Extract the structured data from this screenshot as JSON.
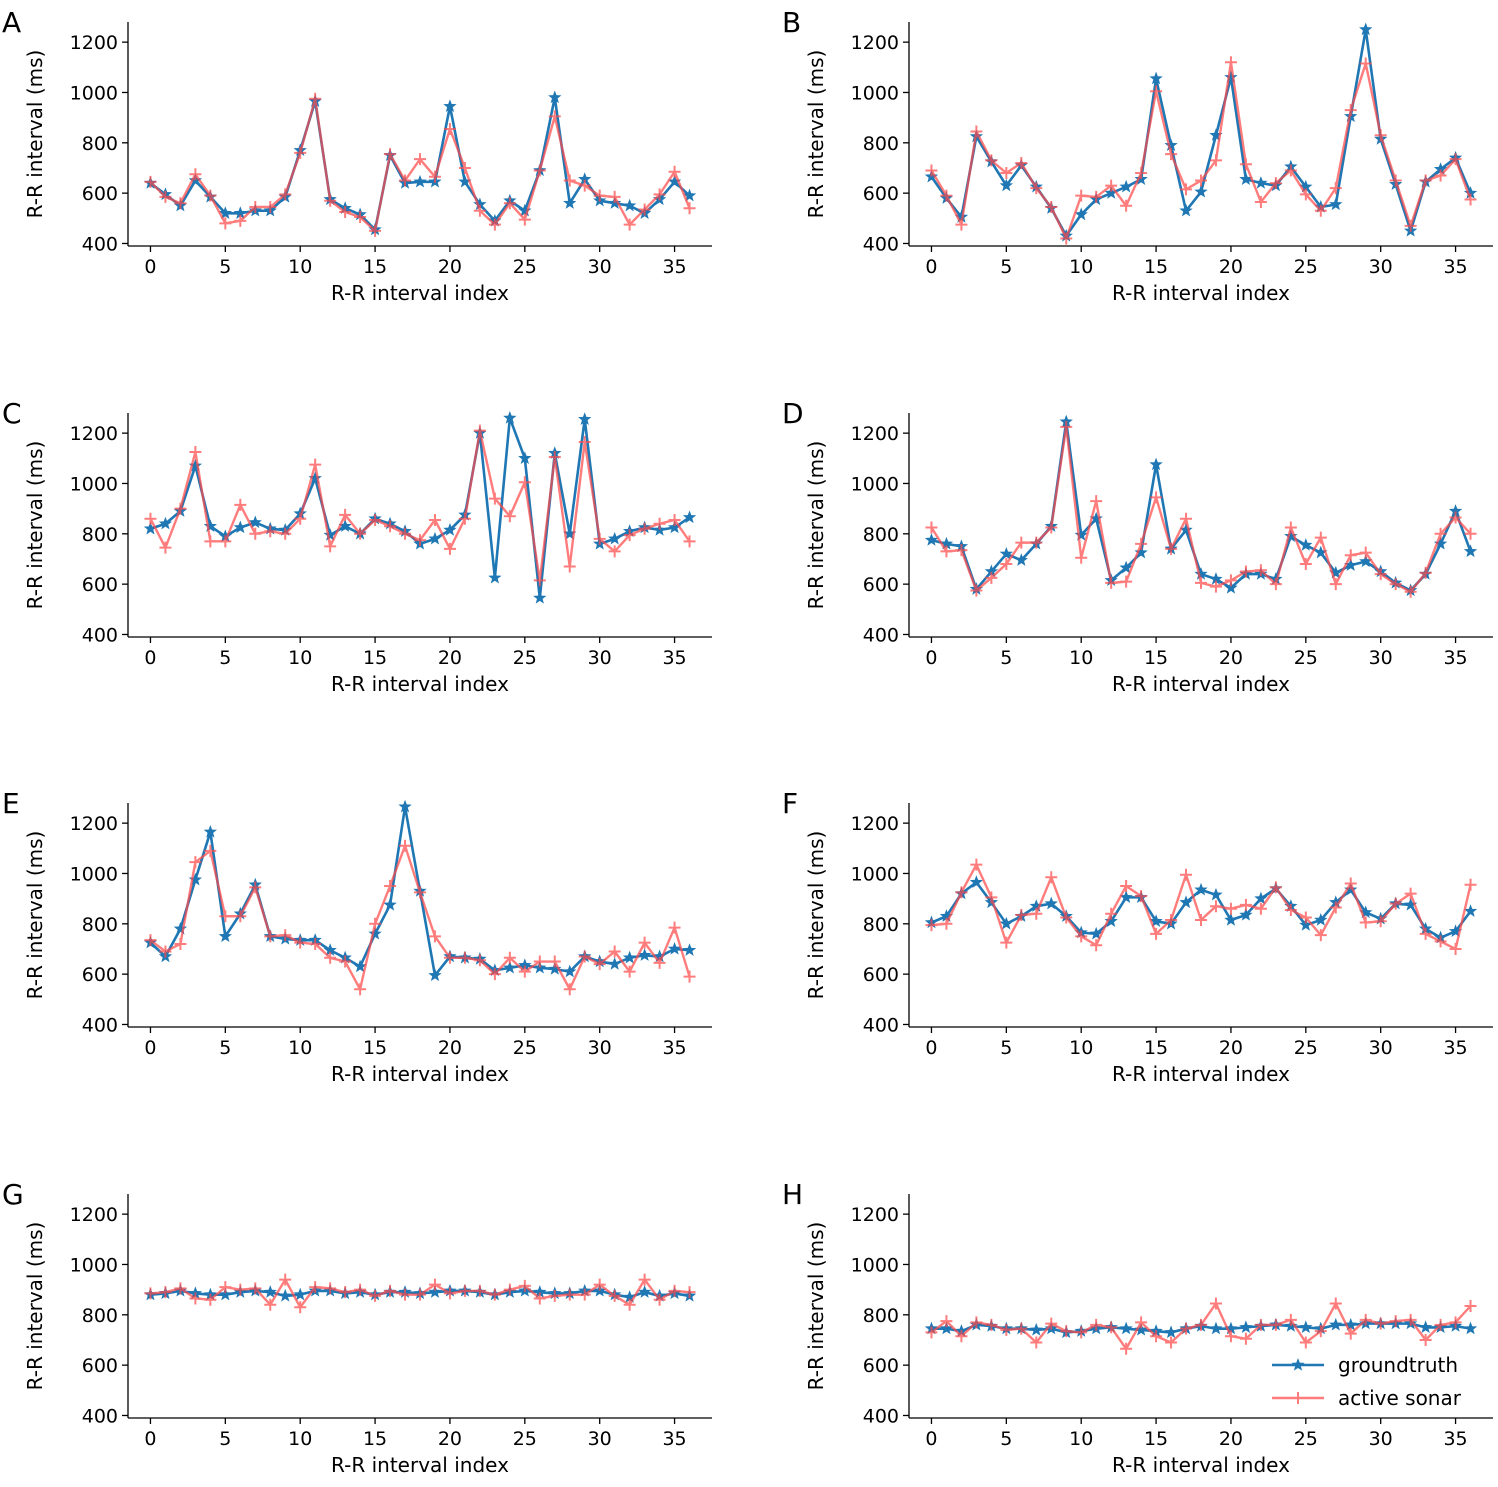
{
  "colors": {
    "groundtruth": "#1f77b4",
    "active_sonar": "#ff4a4a"
  },
  "legend": {
    "groundtruth": "groundtruth",
    "active_sonar": "active sonar",
    "location": "lower-right of panel H"
  },
  "chart_data": [
    {
      "type": "line",
      "panel": "A",
      "xlabel": "R-R interval index",
      "ylabel": "R-R interval (ms)",
      "xlim": [
        -1.5,
        37.5
      ],
      "ylim": [
        390,
        1280
      ],
      "xticks": [
        0,
        5,
        10,
        15,
        20,
        25,
        30,
        35
      ],
      "yticks": [
        400,
        600,
        800,
        1000,
        1200
      ],
      "xtick_labels": [
        "0",
        "5",
        "10",
        "15",
        "20",
        "25",
        "30",
        "35"
      ],
      "ytick_labels": [
        "400",
        "600",
        "800",
        "1000",
        "1200"
      ],
      "series": [
        {
          "name": "groundtruth",
          "values": [
            640,
            595,
            550,
            650,
            585,
            520,
            520,
            530,
            530,
            585,
            770,
            965,
            575,
            540,
            515,
            455,
            750,
            640,
            645,
            645,
            945,
            645,
            555,
            490,
            570,
            530,
            690,
            980,
            560,
            655,
            570,
            560,
            550,
            520,
            575,
            645,
            590
          ]
        },
        {
          "name": "active sonar",
          "values": [
            645,
            585,
            560,
            675,
            590,
            480,
            490,
            545,
            545,
            595,
            760,
            975,
            570,
            525,
            505,
            450,
            755,
            650,
            735,
            665,
            855,
            700,
            530,
            475,
            560,
            495,
            690,
            905,
            650,
            630,
            590,
            585,
            475,
            535,
            595,
            685,
            540
          ]
        }
      ]
    },
    {
      "type": "line",
      "panel": "B",
      "xlabel": "R-R interval index",
      "ylabel": "R-R interval (ms)",
      "xlim": [
        -1.5,
        37.5
      ],
      "ylim": [
        390,
        1280
      ],
      "xticks": [
        0,
        5,
        10,
        15,
        20,
        25,
        30,
        35
      ],
      "yticks": [
        400,
        600,
        800,
        1000,
        1200
      ],
      "xtick_labels": [
        "0",
        "5",
        "10",
        "15",
        "20",
        "25",
        "30",
        "35"
      ],
      "ytick_labels": [
        "400",
        "600",
        "800",
        "1000",
        "1200"
      ],
      "series": [
        {
          "name": "groundtruth",
          "values": [
            665,
            580,
            505,
            825,
            725,
            630,
            710,
            625,
            540,
            430,
            515,
            575,
            600,
            625,
            655,
            1055,
            790,
            530,
            605,
            830,
            1060,
            655,
            640,
            630,
            705,
            625,
            545,
            555,
            905,
            1250,
            815,
            635,
            450,
            645,
            695,
            740,
            600
          ]
        },
        {
          "name": "active sonar",
          "values": [
            690,
            590,
            475,
            845,
            730,
            680,
            720,
            620,
            545,
            420,
            590,
            585,
            630,
            550,
            680,
            1005,
            755,
            615,
            650,
            730,
            1120,
            715,
            565,
            640,
            690,
            595,
            530,
            620,
            930,
            1115,
            830,
            650,
            470,
            650,
            670,
            735,
            575
          ]
        }
      ]
    },
    {
      "type": "line",
      "panel": "C",
      "xlabel": "R-R interval index",
      "ylabel": "R-R interval (ms)",
      "xlim": [
        -1.5,
        37.5
      ],
      "ylim": [
        390,
        1280
      ],
      "xticks": [
        0,
        5,
        10,
        15,
        20,
        25,
        30,
        35
      ],
      "yticks": [
        400,
        600,
        800,
        1000,
        1200
      ],
      "xtick_labels": [
        "0",
        "5",
        "10",
        "15",
        "20",
        "25",
        "30",
        "35"
      ],
      "ytick_labels": [
        "400",
        "600",
        "800",
        "1000",
        "1200"
      ],
      "series": [
        {
          "name": "groundtruth",
          "values": [
            820,
            840,
            890,
            1070,
            830,
            790,
            825,
            845,
            820,
            815,
            880,
            1020,
            795,
            830,
            800,
            860,
            840,
            810,
            760,
            780,
            815,
            875,
            1200,
            625,
            1260,
            1100,
            545,
            1120,
            800,
            1255,
            760,
            780,
            810,
            825,
            815,
            825,
            865
          ]
        },
        {
          "name": "active sonar",
          "values": [
            860,
            745,
            900,
            1125,
            770,
            770,
            915,
            800,
            810,
            800,
            860,
            1075,
            750,
            875,
            800,
            855,
            830,
            800,
            775,
            855,
            740,
            860,
            1210,
            940,
            870,
            1005,
            615,
            1105,
            670,
            1165,
            780,
            730,
            795,
            820,
            840,
            855,
            770
          ]
        }
      ]
    },
    {
      "type": "line",
      "panel": "D",
      "xlabel": "R-R interval index",
      "ylabel": "R-R interval (ms)",
      "xlim": [
        -1.5,
        37.5
      ],
      "ylim": [
        390,
        1280
      ],
      "xticks": [
        0,
        5,
        10,
        15,
        20,
        25,
        30,
        35
      ],
      "yticks": [
        400,
        600,
        800,
        1000,
        1200
      ],
      "xtick_labels": [
        "0",
        "5",
        "10",
        "15",
        "20",
        "25",
        "30",
        "35"
      ],
      "ytick_labels": [
        "400",
        "600",
        "800",
        "1000",
        "1200"
      ],
      "series": [
        {
          "name": "groundtruth",
          "values": [
            775,
            760,
            750,
            580,
            650,
            720,
            695,
            760,
            830,
            1245,
            795,
            860,
            615,
            665,
            725,
            1075,
            740,
            815,
            640,
            620,
            585,
            640,
            640,
            620,
            790,
            755,
            725,
            645,
            675,
            690,
            650,
            605,
            575,
            640,
            760,
            890,
            730
          ]
        },
        {
          "name": "active sonar",
          "values": [
            825,
            730,
            735,
            575,
            625,
            680,
            765,
            765,
            825,
            1225,
            705,
            930,
            605,
            610,
            760,
            945,
            740,
            860,
            605,
            590,
            615,
            650,
            655,
            600,
            825,
            680,
            785,
            600,
            715,
            725,
            640,
            600,
            570,
            645,
            800,
            865,
            800
          ]
        }
      ]
    },
    {
      "type": "line",
      "panel": "E",
      "xlabel": "R-R interval index",
      "ylabel": "R-R interval (ms)",
      "xlim": [
        -1.5,
        37.5
      ],
      "ylim": [
        390,
        1280
      ],
      "xticks": [
        0,
        5,
        10,
        15,
        20,
        25,
        30,
        35
      ],
      "yticks": [
        400,
        600,
        800,
        1000,
        1200
      ],
      "xtick_labels": [
        "0",
        "5",
        "10",
        "15",
        "20",
        "25",
        "30",
        "35"
      ],
      "ytick_labels": [
        "400",
        "600",
        "800",
        "1000",
        "1200"
      ],
      "series": [
        {
          "name": "groundtruth",
          "values": [
            725,
            670,
            780,
            975,
            1165,
            750,
            840,
            955,
            750,
            740,
            735,
            735,
            695,
            665,
            630,
            760,
            875,
            1265,
            930,
            595,
            670,
            665,
            660,
            615,
            625,
            635,
            625,
            620,
            610,
            670,
            650,
            640,
            665,
            675,
            670,
            700,
            695
          ]
        },
        {
          "name": "active sonar",
          "values": [
            735,
            690,
            720,
            1045,
            1090,
            830,
            830,
            945,
            750,
            755,
            725,
            720,
            665,
            650,
            540,
            800,
            950,
            1110,
            925,
            750,
            665,
            665,
            655,
            600,
            665,
            610,
            650,
            650,
            540,
            670,
            640,
            690,
            610,
            725,
            645,
            785,
            590
          ]
        }
      ]
    },
    {
      "type": "line",
      "panel": "F",
      "xlabel": "R-R interval index",
      "ylabel": "R-R interval (ms)",
      "xlim": [
        -1.5,
        37.5
      ],
      "ylim": [
        390,
        1280
      ],
      "xticks": [
        0,
        5,
        10,
        15,
        20,
        25,
        30,
        35
      ],
      "yticks": [
        400,
        600,
        800,
        1000,
        1200
      ],
      "xtick_labels": [
        "0",
        "5",
        "10",
        "15",
        "20",
        "25",
        "30",
        "35"
      ],
      "ytick_labels": [
        "400",
        "600",
        "800",
        "1000",
        "1200"
      ],
      "series": [
        {
          "name": "groundtruth",
          "values": [
            805,
            830,
            920,
            965,
            885,
            800,
            830,
            870,
            880,
            830,
            765,
            760,
            810,
            905,
            905,
            810,
            800,
            885,
            935,
            915,
            815,
            835,
            900,
            940,
            870,
            795,
            815,
            885,
            935,
            845,
            820,
            880,
            875,
            780,
            745,
            770,
            850
          ]
        },
        {
          "name": "active sonar",
          "values": [
            795,
            800,
            925,
            1035,
            905,
            725,
            835,
            840,
            985,
            825,
            750,
            715,
            840,
            950,
            910,
            760,
            815,
            995,
            815,
            870,
            860,
            875,
            860,
            945,
            855,
            825,
            755,
            865,
            960,
            805,
            810,
            880,
            920,
            760,
            730,
            700,
            955
          ]
        }
      ]
    },
    {
      "type": "line",
      "panel": "G",
      "xlabel": "R-R interval index",
      "ylabel": "R-R interval (ms)",
      "xlim": [
        -1.5,
        37.5
      ],
      "ylim": [
        390,
        1280
      ],
      "xticks": [
        0,
        5,
        10,
        15,
        20,
        25,
        30,
        35
      ],
      "yticks": [
        400,
        600,
        800,
        1000,
        1200
      ],
      "xtick_labels": [
        "0",
        "5",
        "10",
        "15",
        "20",
        "25",
        "30",
        "35"
      ],
      "ytick_labels": [
        "400",
        "600",
        "800",
        "1000",
        "1200"
      ],
      "series": [
        {
          "name": "groundtruth",
          "values": [
            880,
            885,
            895,
            885,
            880,
            880,
            890,
            895,
            890,
            875,
            880,
            895,
            895,
            885,
            890,
            880,
            890,
            890,
            885,
            890,
            895,
            895,
            890,
            880,
            890,
            895,
            890,
            885,
            885,
            895,
            895,
            880,
            870,
            890,
            875,
            885,
            875
          ]
        },
        {
          "name": "active sonar",
          "values": [
            885,
            890,
            905,
            865,
            860,
            910,
            900,
            905,
            840,
            940,
            830,
            910,
            905,
            890,
            900,
            875,
            895,
            880,
            880,
            920,
            885,
            895,
            895,
            880,
            900,
            915,
            865,
            875,
            880,
            880,
            920,
            875,
            840,
            940,
            860,
            895,
            890
          ]
        }
      ]
    },
    {
      "type": "line",
      "panel": "H",
      "xlabel": "R-R interval index",
      "ylabel": "R-R interval (ms)",
      "xlim": [
        -1.5,
        37.5
      ],
      "ylim": [
        390,
        1280
      ],
      "xticks": [
        0,
        5,
        10,
        15,
        20,
        25,
        30,
        35
      ],
      "yticks": [
        400,
        600,
        800,
        1000,
        1200
      ],
      "xtick_labels": [
        "0",
        "5",
        "10",
        "15",
        "20",
        "25",
        "30",
        "35"
      ],
      "ytick_labels": [
        "400",
        "600",
        "800",
        "1000",
        "1200"
      ],
      "series": [
        {
          "name": "groundtruth",
          "values": [
            745,
            745,
            735,
            760,
            755,
            745,
            745,
            740,
            745,
            730,
            735,
            745,
            750,
            745,
            740,
            735,
            730,
            745,
            755,
            745,
            745,
            750,
            755,
            760,
            755,
            750,
            745,
            760,
            760,
            765,
            765,
            765,
            765,
            750,
            750,
            755,
            745
          ]
        },
        {
          "name": "active sonar",
          "values": [
            730,
            775,
            715,
            770,
            760,
            740,
            745,
            690,
            765,
            735,
            730,
            760,
            750,
            665,
            770,
            715,
            690,
            745,
            760,
            845,
            715,
            705,
            760,
            760,
            780,
            690,
            735,
            845,
            725,
            780,
            765,
            775,
            780,
            700,
            760,
            770,
            835
          ]
        }
      ]
    }
  ]
}
